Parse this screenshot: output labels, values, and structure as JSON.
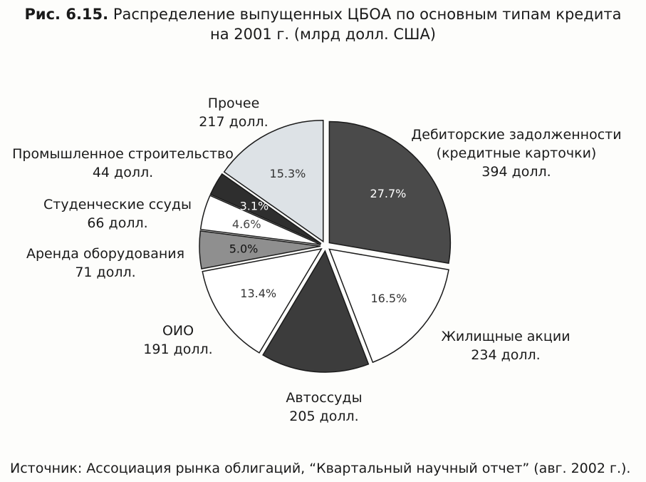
{
  "title": {
    "fig_label": "Рис. 6.15.",
    "line1": "Распределение выпущенных ЦБОА по основным типам кредита",
    "line2": "на 2001 г. (млрд долл. США)"
  },
  "source": "Источник: Ассоциация рынка облигаций, “Квартальный научный отчет” (авг. 2002 г.).",
  "chart_data": {
    "type": "pie",
    "title": "Распределение выпущенных ЦБОА по основным типам кредита на 2001 г. (млрд долл. США)",
    "slices": [
      {
        "name": "Дебиторские задолженности",
        "name2": "(кредитные карточки)",
        "value_text": "394 долл.",
        "value": 394,
        "percent_text": "27.7%",
        "percent": 27.7,
        "color": "#4a4a4a",
        "pct_color": "#ffffff"
      },
      {
        "name": "Жилищные акции",
        "name2": "",
        "value_text": "234 долл.",
        "value": 234,
        "percent_text": "16.5%",
        "percent": 16.5,
        "color": "#ffffff",
        "pct_color": "#333333"
      },
      {
        "name": "Автоссуды",
        "name2": "",
        "value_text": "205 долл.",
        "value": 205,
        "percent_text": "",
        "percent": 14.4,
        "color": "#3c3c3c",
        "pct_color": "#ffffff"
      },
      {
        "name": "ОИО",
        "name2": "",
        "value_text": "191 долл.",
        "value": 191,
        "percent_text": "13.4%",
        "percent": 13.4,
        "color": "#ffffff",
        "pct_color": "#333333"
      },
      {
        "name": "Аренда оборудования",
        "name2": "",
        "value_text": "71 долл.",
        "value": 71,
        "percent_text": "5.0%",
        "percent": 5.0,
        "color": "#8f8f8f",
        "pct_color": "#111111"
      },
      {
        "name": "Студенческие ссуды",
        "name2": "",
        "value_text": "66 долл.",
        "value": 66,
        "percent_text": "4.6%",
        "percent": 4.6,
        "color": "#ffffff",
        "pct_color": "#444444"
      },
      {
        "name": "Промышленное строительство",
        "name2": "",
        "value_text": "44 долл.",
        "value": 44,
        "percent_text": "3.1%",
        "percent": 3.1,
        "color": "#2e2e2e",
        "pct_color": "#ffffff"
      },
      {
        "name": "Прочее",
        "name2": "",
        "value_text": "217 долл.",
        "value": 217,
        "percent_text": "15.3%",
        "percent": 15.3,
        "color": "#dde2e6",
        "pct_color": "#333333"
      }
    ],
    "exploded": true,
    "legend": "none"
  }
}
